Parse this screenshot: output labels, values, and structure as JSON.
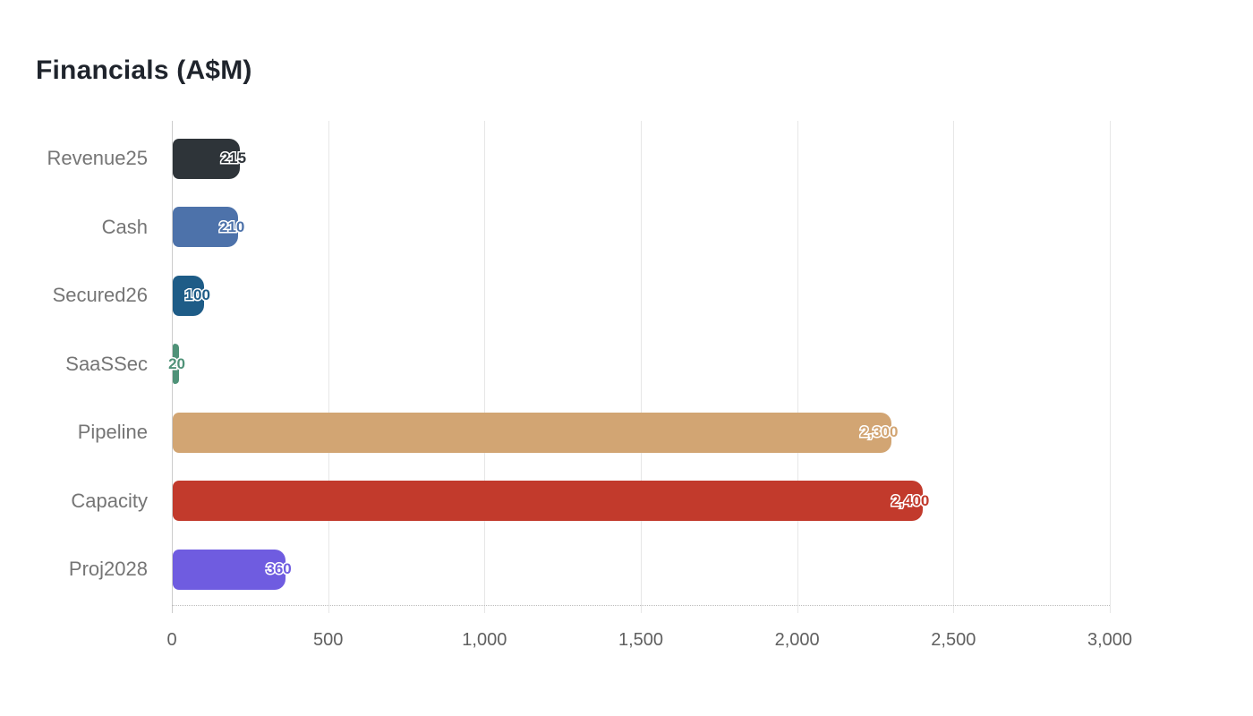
{
  "title": "Financials (A$M)",
  "chart_data": {
    "type": "bar",
    "orientation": "horizontal",
    "title": "Financials (A$M)",
    "categories": [
      "Revenue25",
      "Cash",
      "Secured26",
      "SaaSSec",
      "Pipeline",
      "Capacity",
      "Proj2028"
    ],
    "values": [
      215,
      210,
      100,
      20,
      2300,
      2400,
      360
    ],
    "value_labels": [
      "215",
      "210",
      "100",
      "20",
      "2,300",
      "2,400",
      "360"
    ],
    "series_colors": [
      "#2e3439",
      "#4d72aa",
      "#1e5c87",
      "#4f9278",
      "#d2a573",
      "#c23a2c",
      "#6f5ce0"
    ],
    "xlabel": "",
    "ylabel": "",
    "xlim": [
      0,
      3000
    ],
    "x_ticks": [
      0,
      500,
      1000,
      1500,
      2000,
      2500,
      3000
    ],
    "x_tick_labels": [
      "0",
      "500",
      "1,000",
      "1,500",
      "2,000",
      "2,500",
      "3,000"
    ],
    "grid": "vertical-only",
    "legend": "none",
    "background": "#ffffff"
  },
  "styles": {
    "title_color": "#1f242c",
    "category_label_color": "#757575",
    "tick_label_color": "#606060",
    "gridline_color": "#e7e7e7",
    "axis_line_color": "#cccccc",
    "baseline_color": "#bdbdbd"
  }
}
